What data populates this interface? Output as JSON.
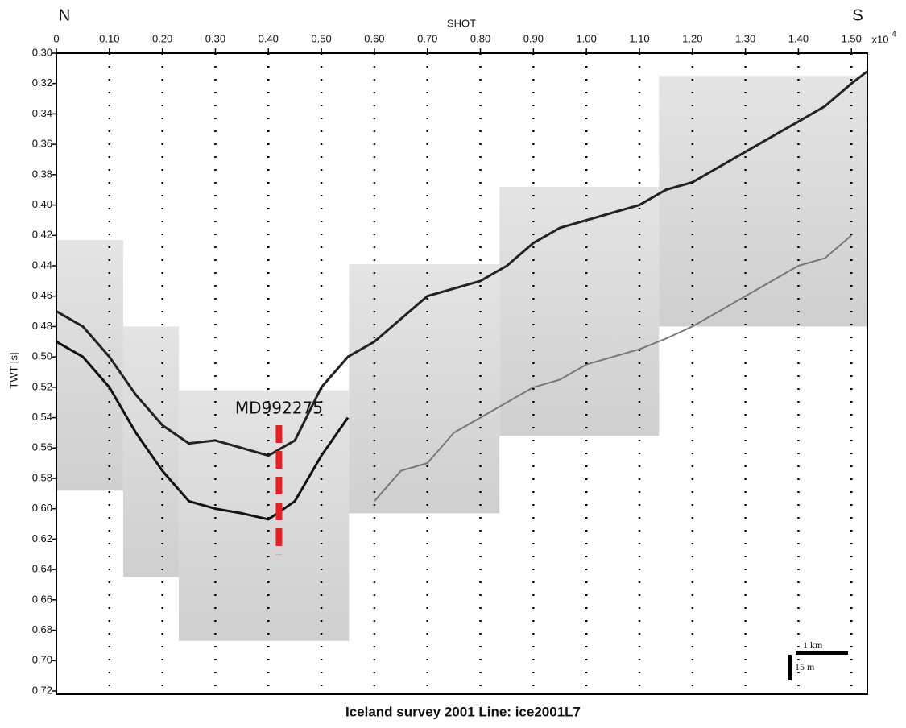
{
  "chart_data": {
    "type": "profile",
    "title": "Iceland survey 2001 Line: ice2001L7",
    "xlabel": "SHOT",
    "ylabel": "TWT [s]",
    "x_multiplier": "x10",
    "x_exponent": 4,
    "left_label": "N",
    "right_label": "S",
    "xlim": [
      0,
      1.53
    ],
    "ylim": [
      0.3,
      0.72
    ],
    "y_inverted": true,
    "xticks": [
      0,
      {
        "value": 0.1,
        "label": "0.10"
      },
      {
        "value": 0.2,
        "label": "0.20"
      },
      {
        "value": 0.3,
        "label": "0.30"
      },
      {
        "value": 0.4,
        "label": "0.40"
      },
      {
        "value": 0.5,
        "label": "0.50"
      },
      {
        "value": 0.6,
        "label": "0.60"
      },
      {
        "value": 0.7,
        "label": "0.70"
      },
      {
        "value": 0.8,
        "label": "0.80"
      },
      {
        "value": 0.9,
        "label": "0.90"
      },
      {
        "value": 1.0,
        "label": "1.00"
      },
      {
        "value": 1.1,
        "label": "1.10"
      },
      {
        "value": 1.2,
        "label": "1.20"
      },
      {
        "value": 1.3,
        "label": "1.30"
      },
      {
        "value": 1.4,
        "label": "1.40"
      },
      {
        "value": 1.5,
        "label": "1.50"
      }
    ],
    "yticks": [
      {
        "value": 0.3,
        "label": "0.30"
      },
      {
        "value": 0.32,
        "label": "0.32"
      },
      {
        "value": 0.34,
        "label": "0.34"
      },
      {
        "value": 0.36,
        "label": "0.36"
      },
      {
        "value": 0.38,
        "label": "0.38"
      },
      {
        "value": 0.4,
        "label": "0.40"
      },
      {
        "value": 0.42,
        "label": "0.42"
      },
      {
        "value": 0.44,
        "label": "0.44"
      },
      {
        "value": 0.46,
        "label": "0.46"
      },
      {
        "value": 0.48,
        "label": "0.48"
      },
      {
        "value": 0.5,
        "label": "0.50"
      },
      {
        "value": 0.52,
        "label": "0.52"
      },
      {
        "value": 0.54,
        "label": "0.54"
      },
      {
        "value": 0.56,
        "label": "0.56"
      },
      {
        "value": 0.58,
        "label": "0.58"
      },
      {
        "value": 0.6,
        "label": "0.60"
      },
      {
        "value": 0.62,
        "label": "0.62"
      },
      {
        "value": 0.64,
        "label": "0.64"
      },
      {
        "value": 0.66,
        "label": "0.66"
      },
      {
        "value": 0.68,
        "label": "0.68"
      },
      {
        "value": 0.7,
        "label": "0.70"
      },
      {
        "value": 0.72,
        "label": "0.72"
      }
    ],
    "grid_x": true,
    "panels": [
      {
        "x": [
          0,
          0.126
        ],
        "y": [
          0.423,
          0.588
        ]
      },
      {
        "x": [
          0.126,
          0.231
        ],
        "y": [
          0.48,
          0.645
        ]
      },
      {
        "x": [
          0.231,
          0.552
        ],
        "y": [
          0.522,
          0.687
        ]
      },
      {
        "x": [
          0.552,
          0.836
        ],
        "y": [
          0.439,
          0.603
        ]
      },
      {
        "x": [
          0.836,
          1.137
        ],
        "y": [
          0.388,
          0.552
        ]
      },
      {
        "x": [
          1.137,
          1.53
        ],
        "y": [
          0.315,
          0.48
        ]
      }
    ],
    "x": [
      0,
      0.05,
      0.1,
      0.15,
      0.2,
      0.25,
      0.3,
      0.35,
      0.4,
      0.45,
      0.5,
      0.55,
      0.6,
      0.65,
      0.7,
      0.75,
      0.8,
      0.85,
      0.9,
      0.95,
      1.0,
      1.05,
      1.1,
      1.15,
      1.2,
      1.25,
      1.3,
      1.35,
      1.4,
      1.45,
      1.5,
      1.53
    ],
    "series": [
      {
        "color": "#222222",
        "width": 3,
        "values": [
          0.47,
          0.48,
          0.5,
          0.525,
          0.545,
          0.557,
          0.555,
          0.56,
          0.565,
          0.555,
          0.52,
          0.5,
          0.49,
          0.475,
          0.46,
          0.455,
          0.45,
          0.44,
          0.425,
          0.415,
          0.41,
          0.405,
          0.4,
          0.39,
          0.385,
          0.375,
          0.365,
          0.355,
          0.345,
          0.335,
          0.32,
          0.312
        ]
      },
      {
        "color": "#111111",
        "width": 3,
        "values": [
          0.49,
          0.5,
          0.52,
          0.55,
          0.575,
          0.595,
          0.6,
          0.603,
          0.607,
          0.595,
          0.565,
          0.54,
          null,
          null,
          null,
          null,
          null,
          null,
          null,
          null,
          null,
          null,
          null,
          null,
          null,
          null,
          null,
          null,
          null,
          null,
          null,
          null
        ]
      },
      {
        "color": "#777777",
        "width": 2,
        "values": [
          null,
          null,
          null,
          null,
          null,
          null,
          null,
          null,
          null,
          null,
          null,
          null,
          0.595,
          0.575,
          0.57,
          0.55,
          0.54,
          0.53,
          0.52,
          0.515,
          0.505,
          0.5,
          0.495,
          0.488,
          0.48,
          0.47,
          0.46,
          0.45,
          0.44,
          0.435,
          0.42,
          null
        ]
      }
    ],
    "core": {
      "label": "MD992275",
      "color": "#ee1c1c",
      "x": 0.42,
      "y": [
        0.545,
        0.63
      ]
    },
    "scale_bar": {
      "horizontal": "1 km",
      "vertical": "15 m"
    }
  }
}
